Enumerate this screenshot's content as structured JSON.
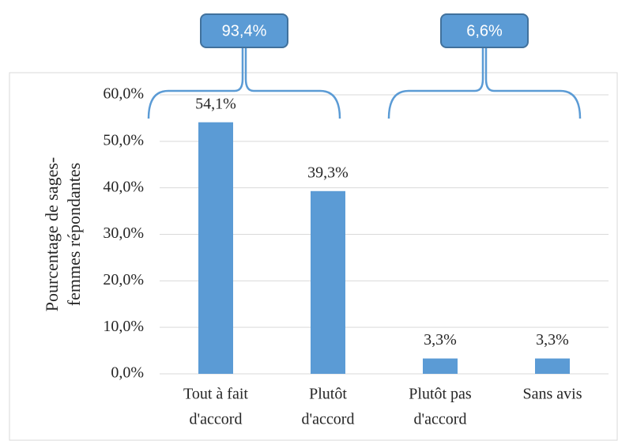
{
  "chart_data": {
    "type": "bar",
    "ylabel": [
      "Pourcentage de sages-",
      "femmes répondantes"
    ],
    "categories": [
      [
        "Tout à fait",
        "d'accord"
      ],
      [
        "Plutôt",
        "d'accord"
      ],
      [
        "Plutôt pas",
        "d'accord"
      ],
      [
        "Sans avis"
      ]
    ],
    "values": [
      54.1,
      39.3,
      3.3,
      3.3
    ],
    "value_labels": [
      "54,1%",
      "39,3%",
      "3,3%",
      "3,3%"
    ],
    "color": "#5b9bd5",
    "ylim": [
      0,
      60
    ],
    "yticks": [
      {
        "value": 0,
        "label": "0,0%"
      },
      {
        "value": 10,
        "label": "10,0%"
      },
      {
        "value": 20,
        "label": "20,0%"
      },
      {
        "value": 30,
        "label": "30,0%"
      },
      {
        "value": 40,
        "label": "40,0%"
      },
      {
        "value": 50,
        "label": "50,0%"
      },
      {
        "value": 60,
        "label": "60,0%"
      }
    ],
    "grid": true,
    "annotations": [
      "93,4%",
      "6,6%"
    ]
  }
}
